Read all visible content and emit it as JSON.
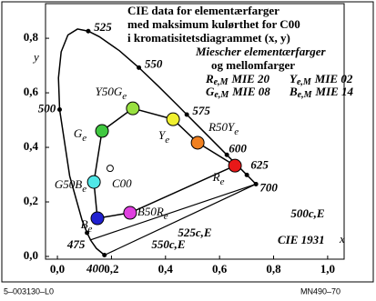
{
  "chart_data": {
    "type": "chromaticity",
    "title_lines": [
      "CIE data for elementærfarger",
      "med maksimum kulørthet for C00",
      "i kromatisitetsdiagrammet (x, y)",
      "Miescher elementærfarger",
      "og mellomfarger"
    ],
    "legend": [
      {
        "letter": "R",
        "sub": "e,M",
        "text": "MIE 20"
      },
      {
        "letter": "Y",
        "sub": "e,M",
        "text": "MIE 02"
      },
      {
        "letter": "G",
        "sub": "e,M",
        "text": "MIE 08"
      },
      {
        "letter": "B",
        "sub": "e,M",
        "text": "MIE 14"
      }
    ],
    "xlabel": "x",
    "ylabel": "y",
    "annotation": "CIE 1931",
    "footer_left": "5–003130–L0",
    "footer_right": "MN490–70",
    "xlim": [
      -0.044,
      1.061
    ],
    "ylim": [
      -0.01,
      0.927
    ],
    "xticks": [
      {
        "value": 0,
        "label": "0,0"
      },
      {
        "value": 0.2,
        "label": "0,2"
      },
      {
        "value": 0.4,
        "label": "0,4"
      },
      {
        "value": 0.6,
        "label": "0,6"
      },
      {
        "value": 0.8,
        "label": "0,8"
      },
      {
        "value": 1,
        "label": "1,0"
      }
    ],
    "yticks": [
      {
        "value": 0,
        "label": "0,0"
      },
      {
        "value": 0.2,
        "label": "0,2"
      },
      {
        "value": 0.4,
        "label": "0,4"
      },
      {
        "value": 0.6,
        "label": "0,6"
      },
      {
        "value": 0.8,
        "label": "0,8"
      }
    ],
    "locus": {
      "x": [
        0.1741,
        0.144,
        0.1241,
        0.1096,
        0.0913,
        0.0454,
        0.0082,
        0.0039,
        0.0139,
        0.0389,
        0.0743,
        0.1142,
        0.1547,
        0.2296,
        0.3016,
        0.3731,
        0.4441,
        0.4788,
        0.5125,
        0.5752,
        0.627,
        0.6658,
        0.6915,
        0.701,
        0.719,
        0.7347
      ],
      "y": [
        0.005,
        0.0297,
        0.0578,
        0.0868,
        0.1327,
        0.295,
        0.5384,
        0.6548,
        0.7502,
        0.812,
        0.8338,
        0.8262,
        0.8059,
        0.7543,
        0.6923,
        0.6245,
        0.5547,
        0.5202,
        0.4866,
        0.4242,
        0.3725,
        0.334,
        0.3083,
        0.299,
        0.2809,
        0.2653
      ]
    },
    "wavelengths": [
      {
        "label": "525",
        "x": 0.1142,
        "y": 0.8262
      },
      {
        "label": "550",
        "x": 0.3016,
        "y": 0.6923
      },
      {
        "label": "575",
        "x": 0.4788,
        "y": 0.5202
      },
      {
        "label": "600",
        "x": 0.627,
        "y": 0.3725
      },
      {
        "label": "625",
        "x": 0.701,
        "y": 0.299
      },
      {
        "label": "700",
        "x": 0.7347,
        "y": 0.2653
      },
      {
        "label": "500",
        "x": 0.0082,
        "y": 0.5384
      },
      {
        "label": "475",
        "x": 0.1096,
        "y": 0.0868
      },
      {
        "label": "400",
        "x": 0.1741,
        "y": 0.005
      }
    ],
    "lines": [
      {
        "x": [
          0.1741,
          0.7347
        ],
        "y": [
          0.005,
          0.2653
        ]
      },
      {
        "x": [
          0.12,
          0.7347
        ],
        "y": [
          0.06,
          0.2653
        ]
      }
    ],
    "line_labels": [
      "500c,E",
      "525c,E",
      "550c,E"
    ],
    "colors": [
      {
        "label": "R",
        "sub": "e",
        "x": 0.657,
        "y": 0.333,
        "color": "#e81818"
      },
      {
        "label": "R50Y",
        "sub": "e",
        "x": 0.519,
        "y": 0.417,
        "color": "#f08020"
      },
      {
        "label": "Y",
        "sub": "e",
        "x": 0.428,
        "y": 0.503,
        "color": "#f0f030"
      },
      {
        "label": "Y50G",
        "sub": "e",
        "x": 0.279,
        "y": 0.543,
        "color": "#98e040"
      },
      {
        "label": "G",
        "sub": "e",
        "x": 0.165,
        "y": 0.46,
        "color": "#40c840"
      },
      {
        "label": "G50B",
        "sub": "e",
        "x": 0.135,
        "y": 0.273,
        "color": "#50e8e8"
      },
      {
        "label": "B",
        "sub": "e",
        "x": 0.148,
        "y": 0.14,
        "color": "#2020d0"
      },
      {
        "label": "B50R",
        "sub": "e",
        "x": 0.269,
        "y": 0.16,
        "color": "#e040e0"
      }
    ],
    "center": {
      "label": "C00",
      "x": 0.195,
      "y": 0.323
    }
  }
}
